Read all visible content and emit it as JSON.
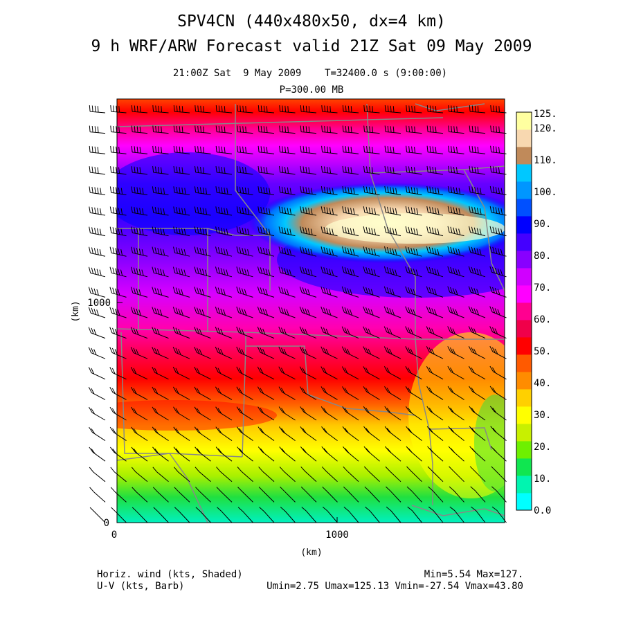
{
  "titles": {
    "line1": "SPV4CN (440x480x50, dx=4 km)",
    "line2": "9 h WRF/ARW Forecast valid 21Z Sat 09 May 2009",
    "sub1": "21:00Z Sat  9 May 2009    T=32400.0 s (9:00:00)",
    "sub2": "P=300.00 MB"
  },
  "axes": {
    "x_label": "(km)",
    "y_label": "(km)",
    "x_tick_labels": [
      "0",
      "1000"
    ],
    "y_tick_labels": [
      "0",
      "1000"
    ]
  },
  "colorbar": {
    "labels": [
      "0.0",
      "10.",
      "20.",
      "30.",
      "40.",
      "50.",
      "60.",
      "70.",
      "80.",
      "90.",
      "100.",
      "110.",
      "120.",
      "125."
    ],
    "colors": [
      "#00ffff",
      "#00f5b0",
      "#10e650",
      "#6ef000",
      "#c8f000",
      "#ffff00",
      "#ffd000",
      "#ff8c00",
      "#ff5a00",
      "#ff0000",
      "#f0004a",
      "#ff0090",
      "#ff00ff",
      "#d000ff",
      "#8800ff",
      "#4400ff",
      "#0000ff",
      "#0050ff",
      "#0096ff",
      "#00c8ff",
      "#c08a5a",
      "#f8d8b0",
      "#ffffa0"
    ]
  },
  "footer": {
    "left1": "Horiz. wind (kts, Shaded)",
    "left2": "U-V (kts, Barb)",
    "right1": "Min=5.54 Max=127.",
    "right2": "Umin=2.75 Umax=125.13 Vmin=-27.54 Vmax=43.80"
  }
}
